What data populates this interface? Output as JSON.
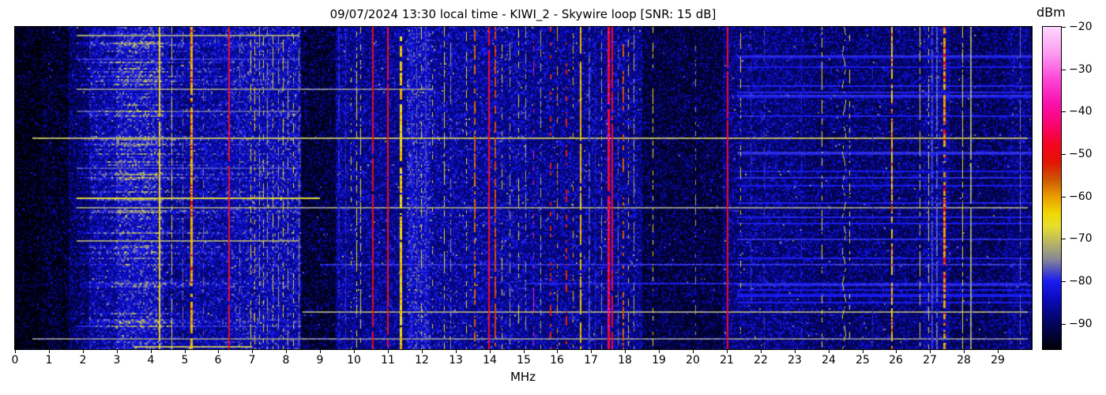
{
  "chart_data": {
    "type": "heatmap",
    "subtype": "radio-spectrogram-waterfall",
    "title": "09/07/2024 13:30 local time - KIWI_2 - Skywire loop [SNR: 15 dB]",
    "date_label": "09/07/2024",
    "time_label": "13:30 local time",
    "receiver_name": "KIWI_2",
    "antenna_name": "Skywire loop",
    "snr_db": 15,
    "xlabel": "MHz",
    "x_range_mhz": [
      0,
      30
    ],
    "x_ticks": [
      0,
      1,
      2,
      3,
      4,
      5,
      6,
      7,
      8,
      9,
      10,
      11,
      12,
      13,
      14,
      15,
      16,
      17,
      18,
      19,
      20,
      21,
      22,
      23,
      24,
      25,
      26,
      27,
      28,
      29
    ],
    "y_tick_labels": [],
    "colorbar": {
      "label": "dBm",
      "tick_values": [
        -20,
        -30,
        -40,
        -50,
        -60,
        -70,
        -80,
        -90
      ],
      "vmax_dbm": -20,
      "vmin_dbm": -96
    },
    "colormap_stops_dbm_hex": [
      [
        -20,
        "#fdd7fc"
      ],
      [
        -26,
        "#fc9ef2"
      ],
      [
        -32,
        "#fb4ad9"
      ],
      [
        -38,
        "#fa10ae"
      ],
      [
        -43,
        "#f9056f"
      ],
      [
        -48,
        "#f4041f"
      ],
      [
        -52,
        "#e31405"
      ],
      [
        -56,
        "#cc5800"
      ],
      [
        -60,
        "#e99c00"
      ],
      [
        -64,
        "#f0d803"
      ],
      [
        -67,
        "#e6df2e"
      ],
      [
        -71,
        "#b7b465"
      ],
      [
        -75,
        "#82839b"
      ],
      [
        -78,
        "#4343c8"
      ],
      [
        -80,
        "#1a1cf0"
      ],
      [
        -84,
        "#0a0bbf"
      ],
      [
        -88,
        "#05067a"
      ],
      [
        -92,
        "#030341"
      ],
      [
        -97,
        "#000005"
      ]
    ],
    "noise_floor_bands_mhz_dbm": [
      [
        0.0,
        0.8,
        -97
      ],
      [
        0.8,
        1.6,
        -95
      ],
      [
        1.6,
        2.2,
        -91
      ],
      [
        2.2,
        3.0,
        -87
      ],
      [
        3.0,
        4.4,
        -84
      ],
      [
        4.4,
        5.2,
        -88
      ],
      [
        5.2,
        6.2,
        -87
      ],
      [
        6.2,
        8.45,
        -86
      ],
      [
        8.45,
        9.45,
        -94
      ],
      [
        9.45,
        11.55,
        -88
      ],
      [
        11.55,
        12.25,
        -84
      ],
      [
        12.25,
        15.1,
        -87
      ],
      [
        15.1,
        18.5,
        -88
      ],
      [
        18.5,
        20.9,
        -93
      ],
      [
        20.9,
        23.3,
        -89
      ],
      [
        23.3,
        26.8,
        -90
      ],
      [
        26.8,
        27.6,
        -88
      ],
      [
        27.6,
        29.3,
        -91
      ],
      [
        29.3,
        30.0,
        -89
      ]
    ],
    "signal_fields": [
      "freq_mhz",
      "level_dbm",
      "width_px",
      "duty_cycle",
      "peak_dbm",
      "peak_prob",
      "drifting"
    ],
    "signals": [
      [
        4.26,
        -64,
        2,
        0.95,
        null,
        0,
        false
      ],
      [
        4.62,
        -68,
        1,
        0.75,
        null,
        0,
        false
      ],
      [
        4.95,
        -76,
        1,
        0.5,
        null,
        0,
        false
      ],
      [
        5.19,
        -61,
        3,
        0.9,
        -52,
        0.18,
        false
      ],
      [
        5.55,
        -76,
        1,
        0.4,
        null,
        0,
        false
      ],
      [
        6.32,
        -50,
        2,
        0.97,
        -46,
        0.3,
        false
      ],
      [
        6.62,
        -75,
        1,
        0.4,
        null,
        0,
        false
      ],
      [
        6.95,
        -65,
        1,
        0.5,
        null,
        0,
        false
      ],
      [
        7.07,
        -64,
        1,
        0.45,
        null,
        0,
        false
      ],
      [
        7.2,
        -71,
        1,
        0.55,
        null,
        0,
        false
      ],
      [
        7.32,
        -68,
        1,
        0.5,
        null,
        0,
        false
      ],
      [
        7.44,
        -73,
        1,
        0.55,
        null,
        0,
        false
      ],
      [
        7.6,
        -69,
        1,
        0.45,
        null,
        0,
        false
      ],
      [
        7.76,
        -73,
        1,
        0.55,
        null,
        0,
        false
      ],
      [
        7.9,
        -66,
        1,
        0.4,
        null,
        0,
        false
      ],
      [
        8.05,
        -72,
        1,
        0.5,
        null,
        0,
        false
      ],
      [
        8.2,
        -67,
        1,
        0.35,
        null,
        0,
        false
      ],
      [
        8.36,
        -74,
        1,
        0.55,
        null,
        0,
        false
      ],
      [
        9.55,
        -80,
        2,
        0.7,
        null,
        0,
        false
      ],
      [
        9.75,
        -79,
        1,
        0.6,
        null,
        0,
        false
      ],
      [
        9.9,
        -66,
        1,
        0.3,
        null,
        0,
        false
      ],
      [
        10.08,
        -65,
        1,
        0.55,
        null,
        0,
        false
      ],
      [
        10.18,
        -68,
        1,
        0.45,
        null,
        0,
        false
      ],
      [
        10.55,
        -50,
        2,
        0.96,
        -46,
        0.2,
        false
      ],
      [
        11.0,
        -51,
        2,
        0.95,
        -47,
        0.2,
        false
      ],
      [
        11.38,
        -66,
        3,
        0.85,
        -62,
        0.4,
        false
      ],
      [
        11.7,
        -80,
        2,
        0.75,
        null,
        0,
        false
      ],
      [
        11.85,
        -77,
        1,
        0.6,
        null,
        0,
        false
      ],
      [
        11.97,
        -66,
        1,
        0.3,
        null,
        0,
        false
      ],
      [
        12.12,
        -79,
        2,
        0.7,
        null,
        0,
        false
      ],
      [
        12.3,
        -67,
        1,
        0.3,
        null,
        0,
        false
      ],
      [
        12.65,
        -65,
        1,
        0.65,
        null,
        0,
        false
      ],
      [
        12.85,
        -74,
        1,
        0.5,
        null,
        0,
        false
      ],
      [
        13.3,
        -67,
        1,
        0.45,
        null,
        0,
        false
      ],
      [
        13.57,
        -57,
        2,
        0.55,
        null,
        0,
        false
      ],
      [
        13.98,
        -49,
        2,
        0.97,
        -45,
        0.25,
        false
      ],
      [
        14.17,
        -55,
        2,
        0.75,
        null,
        0,
        false
      ],
      [
        14.35,
        -64,
        1,
        0.4,
        null,
        0,
        false
      ],
      [
        14.6,
        -72,
        1,
        0.5,
        null,
        0,
        false
      ],
      [
        14.85,
        -67,
        1,
        0.45,
        null,
        0,
        false
      ],
      [
        15.05,
        -73,
        1,
        0.5,
        null,
        0,
        false
      ],
      [
        15.28,
        -38,
        1,
        0.35,
        null,
        0,
        false
      ],
      [
        15.5,
        -72,
        1,
        0.5,
        null,
        0,
        false
      ],
      [
        15.8,
        -53,
        2,
        0.3,
        null,
        0,
        false
      ],
      [
        16.0,
        -60,
        1,
        0.3,
        null,
        0,
        false
      ],
      [
        16.26,
        -52,
        2,
        0.35,
        null,
        0,
        false
      ],
      [
        16.45,
        -62,
        1,
        0.3,
        null,
        0,
        false
      ],
      [
        16.7,
        -62,
        2,
        0.88,
        null,
        0,
        false
      ],
      [
        16.95,
        -78,
        2,
        0.7,
        null,
        0,
        false
      ],
      [
        17.1,
        -80,
        1,
        0.6,
        null,
        0,
        false
      ],
      [
        17.3,
        -73,
        1,
        0.6,
        null,
        0,
        false
      ],
      [
        17.5,
        -47,
        3,
        0.97,
        -38,
        0.2,
        false
      ],
      [
        17.62,
        -49,
        2,
        0.9,
        -44,
        0.2,
        false
      ],
      [
        17.78,
        -76,
        1,
        0.6,
        null,
        0,
        false
      ],
      [
        17.95,
        -56,
        2,
        0.5,
        null,
        0,
        false
      ],
      [
        18.1,
        -62,
        1,
        0.45,
        null,
        0,
        false
      ],
      [
        18.25,
        -72,
        1,
        0.55,
        null,
        0,
        false
      ],
      [
        18.8,
        -65,
        1,
        0.45,
        null,
        0,
        false
      ],
      [
        20.07,
        -73,
        1,
        0.3,
        null,
        0,
        false
      ],
      [
        21.03,
        -50,
        2,
        0.96,
        -46,
        0.2,
        false
      ],
      [
        21.4,
        -64,
        1,
        0.4,
        null,
        0,
        false
      ],
      [
        21.7,
        -79,
        1,
        0.5,
        null,
        0,
        false
      ],
      [
        22.1,
        -78,
        1,
        0.4,
        null,
        0,
        false
      ],
      [
        23.2,
        -80,
        1,
        0.4,
        null,
        0,
        false
      ],
      [
        23.8,
        -66,
        1,
        0.55,
        null,
        0,
        false
      ],
      [
        24.45,
        -68,
        1,
        0.6,
        null,
        0,
        true
      ],
      [
        24.62,
        -67,
        1,
        0.3,
        null,
        0,
        false
      ],
      [
        25.3,
        -80,
        1,
        0.4,
        null,
        0,
        false
      ],
      [
        25.88,
        -63,
        2,
        0.9,
        -55,
        0.15,
        false
      ],
      [
        26.7,
        -68,
        1,
        0.6,
        null,
        0,
        false
      ],
      [
        26.95,
        -69,
        1,
        0.6,
        null,
        0,
        false
      ],
      [
        27.07,
        -78,
        2,
        0.9,
        null,
        0,
        false
      ],
      [
        27.2,
        -77,
        2,
        0.85,
        null,
        0,
        false
      ],
      [
        27.42,
        -60,
        3,
        0.75,
        -50,
        0.2,
        false
      ],
      [
        27.95,
        -66,
        1,
        0.8,
        null,
        0,
        false
      ],
      [
        28.2,
        -73,
        2,
        0.95,
        null,
        0,
        false
      ],
      [
        29.65,
        -76,
        1,
        0.7,
        null,
        0,
        false
      ]
    ],
    "streak_fields": [
      "y_fraction",
      "level_dbm",
      "from_mhz",
      "to_mhz"
    ],
    "horizontal_streaks": [
      [
        0.027,
        -73,
        1.8,
        8.4
      ],
      [
        0.1,
        -79,
        1.8,
        8.4
      ],
      [
        0.19,
        -75,
        1.8,
        12.3
      ],
      [
        0.26,
        -77,
        1.8,
        8.4
      ],
      [
        0.343,
        -71,
        0.5,
        29.9
      ],
      [
        0.436,
        -78,
        1.8,
        8.4
      ],
      [
        0.534,
        -68,
        1.8,
        9.0
      ],
      [
        0.561,
        -74,
        1.8,
        29.9
      ],
      [
        0.667,
        -73,
        1.8,
        8.4
      ],
      [
        0.74,
        -79,
        9.0,
        29.9
      ],
      [
        0.8,
        -80,
        15.0,
        29.9
      ],
      [
        0.887,
        -73,
        8.5,
        29.9
      ],
      [
        0.93,
        -80,
        1.8,
        8.4
      ],
      [
        0.97,
        -75,
        0.5,
        29.9
      ],
      [
        0.995,
        -70,
        3.5,
        7.0
      ]
    ],
    "noise_cloud": {
      "center_mhz": 3.6,
      "sigma_mhz": 1.2,
      "from_mhz": 1.9,
      "to_mhz": 8.45
    },
    "right_side_streak_region": {
      "from_mhz": 21.3,
      "to_mhz": 30.0,
      "row_probability": 0.15,
      "level_dbm": -82
    }
  }
}
